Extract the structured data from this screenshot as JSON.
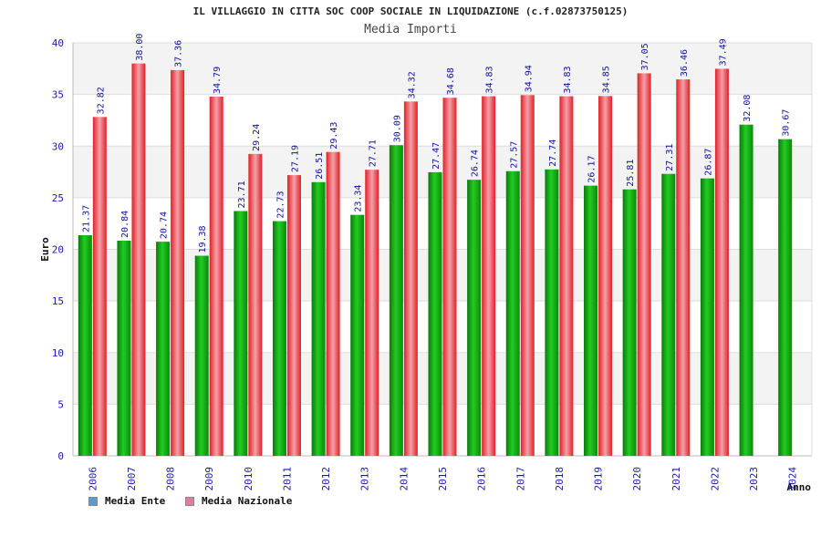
{
  "chart_data": {
    "type": "bar",
    "title": "IL VILLAGGIO IN CITTA SOC COOP SOCIALE IN LIQUIDAZIONE (c.f.02873750125)",
    "subtitle": "Media Importi",
    "xlabel": "Anno",
    "ylabel": "Euro",
    "ylim": [
      0,
      40
    ],
    "yticks": [
      0,
      5,
      10,
      15,
      20,
      25,
      30,
      35,
      40
    ],
    "categories": [
      "2006",
      "2007",
      "2008",
      "2009",
      "2010",
      "2011",
      "2012",
      "2013",
      "2014",
      "2015",
      "2016",
      "2017",
      "2018",
      "2019",
      "2020",
      "2021",
      "2022",
      "2023",
      "2024"
    ],
    "series": [
      {
        "name": "Media Ente",
        "color": "#00aa00",
        "values": [
          21.37,
          20.84,
          20.74,
          19.38,
          23.71,
          22.73,
          26.51,
          23.34,
          30.09,
          27.47,
          26.74,
          27.57,
          27.74,
          26.17,
          25.81,
          27.31,
          26.87,
          32.08,
          30.67
        ],
        "labels": [
          "21.37",
          "20.84",
          "20.74",
          "19.38",
          "23.71",
          "22.73",
          "26.51",
          "23.34",
          "30.09",
          "27.47",
          "26.74",
          "27.57",
          "27.74",
          "26.17",
          "25.81",
          "27.31",
          "26.87",
          "32.08",
          "30.67"
        ]
      },
      {
        "name": "Media Nazionale",
        "color": "#e8323a",
        "values": [
          32.82,
          38.0,
          37.36,
          34.79,
          29.24,
          27.19,
          29.43,
          27.71,
          34.32,
          34.68,
          34.83,
          34.94,
          34.83,
          34.85,
          37.05,
          36.46,
          37.49,
          null,
          null
        ],
        "labels": [
          "32.82",
          "38.00",
          "37.36",
          "34.79",
          "29.24",
          "27.19",
          "29.43",
          "27.71",
          "34.32",
          "34.68",
          "34.83",
          "34.94",
          "34.83",
          "34.85",
          "37.05",
          "36.46",
          "37.49",
          null,
          null
        ]
      }
    ],
    "legend": [
      {
        "label": "Media Ente",
        "color": "#5b9bd5"
      },
      {
        "label": "Media Nazionale",
        "color": "#e07aa0"
      }
    ],
    "grid": true,
    "legend_position": "bottom-left"
  }
}
